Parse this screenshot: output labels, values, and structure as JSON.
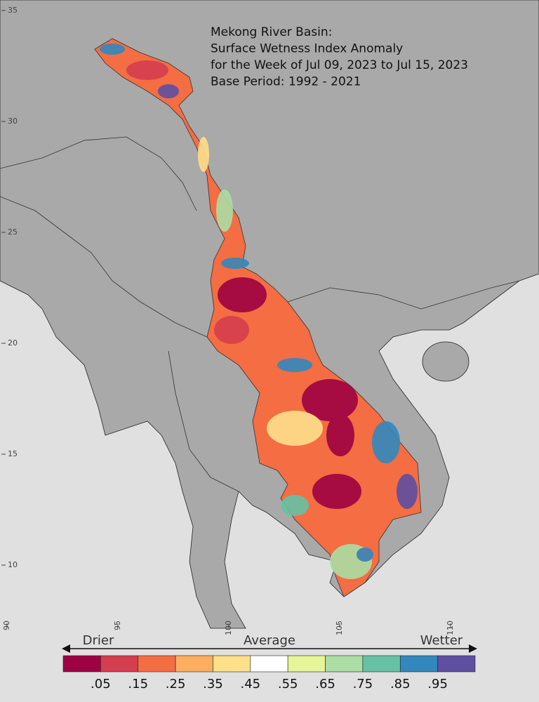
{
  "map": {
    "title_lines": [
      "Mekong River Basin:",
      "Surface Wetness Index Anomaly",
      "for the Week of Jul 09, 2023 to Jul 15, 2023",
      "Base Period: 1992 - 2021"
    ],
    "latitude_ticks": [
      35,
      30,
      25,
      20,
      15,
      10
    ],
    "longitude_ticks": [
      90,
      95,
      100,
      105,
      110
    ],
    "legend": {
      "left": "Drier",
      "center": "Average",
      "right": "Wetter",
      "colors": [
        "#9e0142",
        "#d53e4f",
        "#f46d43",
        "#fdae61",
        "#fee08b",
        "#ffffff",
        "#e6f598",
        "#abdda4",
        "#66c2a5",
        "#3288bd",
        "#5e4fa2"
      ],
      "labels": [
        ".05",
        ".15",
        ".25",
        ".35",
        ".45",
        ".55",
        ".65",
        ".75",
        ".85",
        ".95"
      ]
    }
  }
}
